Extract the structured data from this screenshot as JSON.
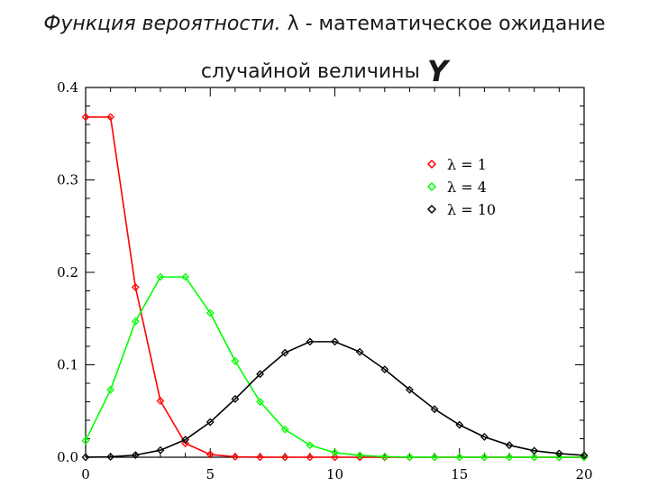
{
  "title": {
    "line1_italic": "Функция вероятности.",
    "line1_symbol": "λ",
    "line1_rest": "- математическое ожидание",
    "line2_text": "случайной величины",
    "line2_var": "Y"
  },
  "chart_data": {
    "type": "line",
    "title": "",
    "xlabel": "",
    "ylabel": "",
    "xlim": [
      0,
      20
    ],
    "ylim": [
      0,
      0.4
    ],
    "xticks": [
      0,
      5,
      10,
      15,
      20
    ],
    "xtick_labels": [
      "0",
      "5",
      "10",
      "15",
      "20"
    ],
    "yticks": [
      0,
      0.1,
      0.2,
      0.3,
      0.4
    ],
    "ytick_labels": [
      "0.0",
      "0.1",
      "0.2",
      "0.3",
      "0.4"
    ],
    "grid": false,
    "legend_position": "top-right",
    "marker": "diamond",
    "x": [
      0,
      1,
      2,
      3,
      4,
      5,
      6,
      7,
      8,
      9,
      10,
      11,
      12,
      13,
      14,
      15,
      16,
      17,
      18,
      19,
      20
    ],
    "series": [
      {
        "name": "λ = 1",
        "color": "#ff0000",
        "values": [
          0.368,
          0.368,
          0.184,
          0.061,
          0.015,
          0.003,
          0.0005,
          0.0001,
          0,
          0,
          0,
          0,
          0,
          0,
          0,
          0,
          0,
          0,
          0,
          0,
          0
        ]
      },
      {
        "name": "λ = 4",
        "color": "#00ff00",
        "values": [
          0.018,
          0.073,
          0.147,
          0.195,
          0.195,
          0.156,
          0.104,
          0.06,
          0.03,
          0.013,
          0.005,
          0.002,
          0.0006,
          0.0002,
          0,
          0,
          0,
          0,
          0,
          0,
          0
        ]
      },
      {
        "name": "λ = 10",
        "color": "#000000",
        "values": [
          5e-05,
          0.0005,
          0.0023,
          0.0076,
          0.019,
          0.038,
          0.063,
          0.09,
          0.113,
          0.125,
          0.125,
          0.114,
          0.095,
          0.073,
          0.052,
          0.035,
          0.022,
          0.013,
          0.007,
          0.004,
          0.002
        ]
      }
    ]
  }
}
